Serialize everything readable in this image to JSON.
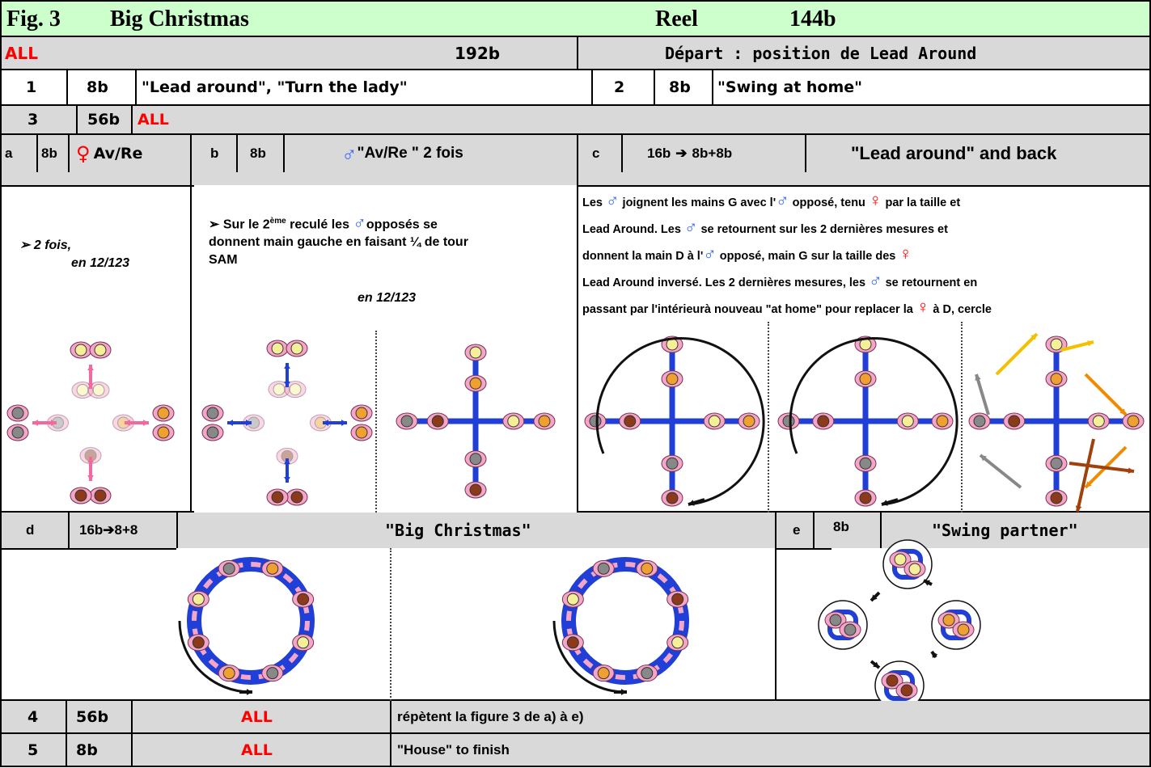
{
  "header": {
    "fig": "Fig. 3",
    "title": "Big Christmas",
    "type": "Reel",
    "bars": "144b"
  },
  "all_row": {
    "who": "ALL",
    "bars": "192b",
    "start": "Départ : position de Lead Around"
  },
  "row_1": {
    "num": "1",
    "bars": "8b",
    "text": "\"Lead around\", \"Turn the lady\"",
    "num2": "2",
    "bars2": "8b",
    "text2": "\"Swing at home\""
  },
  "row_3": {
    "num": "3",
    "bars": "56b",
    "who": "ALL"
  },
  "part_a": {
    "letter": "a",
    "bars": "8b",
    "label": "Av/Re",
    "note1": "2 fois,",
    "note2": "en 12/123"
  },
  "part_b": {
    "letter": "b",
    "bars": "8b",
    "label": "\"Av/Re \" 2 fois",
    "line1a": "Sur le 2",
    "line1sup": "ème",
    "line1b": " reculé les ",
    "line1c": "opposés se",
    "line2": "donnent main gauche en faisant ¼ de tour",
    "line3": "SAM",
    "timing": "en 12/123"
  },
  "part_c": {
    "letter": "c",
    "bars": "16b",
    "bars_split": "8b+8b",
    "label": "\"Lead around\" and back",
    "l1a": "Les ",
    "l1b": " joignent les mains G avec l'",
    "l1c": " opposé, tenu ",
    "l1d": " par la taille et",
    "l2a": "Lead Around. Les ",
    "l2b": " se retournent sur les 2 dernières mesures et",
    "l3a": "donnent la main D à l'",
    "l3b": "  opposé, main G sur la taille des ",
    "l4a": " Lead Around inversé. Les 2 dernières mesures, les ",
    "l4b": " se retournent en",
    "l5a": "passant par l'intérieurà nouveau \"at home\" pour replacer la ",
    "l5b": " à D, cercle"
  },
  "part_d": {
    "letter": "d",
    "bars": "16b",
    "bars_split": "8+8",
    "label": "\"Big Christmas\""
  },
  "part_e": {
    "letter": "e",
    "bars": "8b",
    "label": "\"Swing partner\""
  },
  "row_4": {
    "num": "4",
    "bars": "56b",
    "who": "ALL",
    "text": "répètent la figure 3 de a) à e)"
  },
  "row_5": {
    "num": "5",
    "bars": "8b",
    "who": "ALL",
    "text": "\"House\" to finish"
  },
  "colors": {
    "title_bg": "#ccffcc",
    "row_bg": "#d9d9d9",
    "red": "#ff0000",
    "symbol_blue": "#3366ff",
    "symbol_red": "#ff0000",
    "arm_blue": "#1f3fd6",
    "dancer_pink": "#f4a6c8"
  },
  "icons": [
    "female-icon",
    "male-icon",
    "arrow-right-icon"
  ]
}
